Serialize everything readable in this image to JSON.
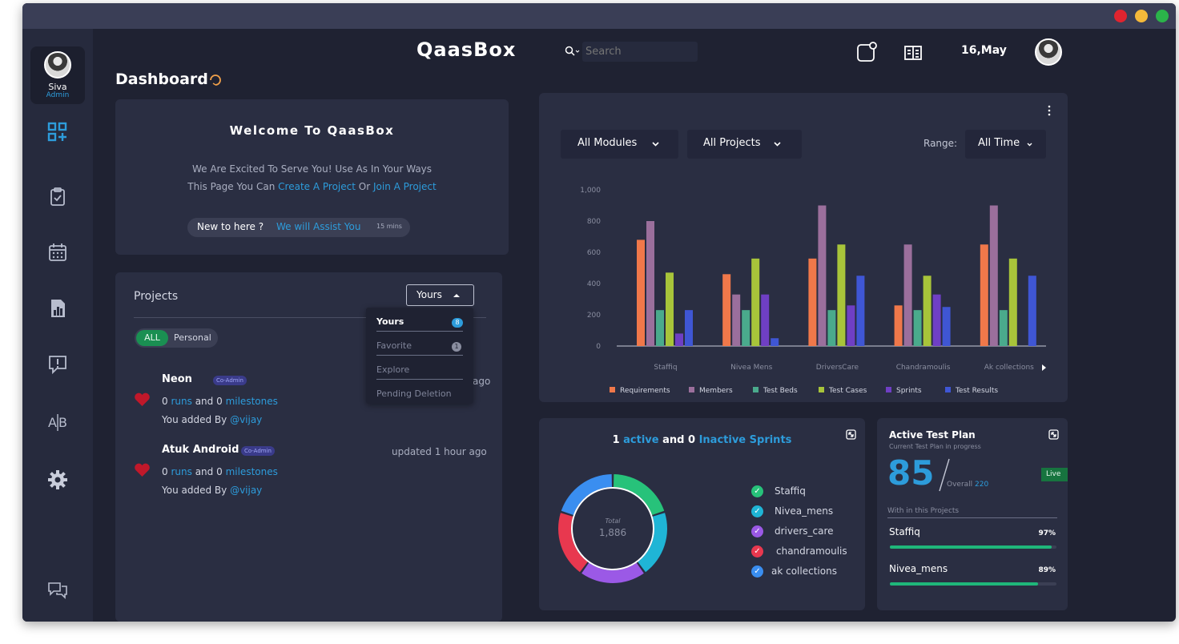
{
  "app": {
    "brand": "QaasBox",
    "date": "16,May"
  },
  "search": {
    "placeholder": "Search"
  },
  "user": {
    "name": "Siva",
    "role": "Admin"
  },
  "page": {
    "title": "Dashboard"
  },
  "welcome": {
    "title": "Welcome To QaasBox",
    "line1": "We Are Excited To Serve You! Use As In Your Ways",
    "line2_prefix": "This Page You  Can",
    "create_link": "Create A Project",
    "or": "Or",
    "join_link": "Join A Project",
    "assist_prefix": "New to here ?",
    "assist_link": "We will Assist You",
    "assist_time": "15 mins"
  },
  "projects": {
    "title": "Projects",
    "filter_selected": "Yours",
    "chips": [
      "ALL",
      "Personal"
    ],
    "dropdown": [
      {
        "label": "Yours",
        "count": "8"
      },
      {
        "label": "Favorite",
        "count": "1"
      },
      {
        "label": "Explore",
        "count": ""
      },
      {
        "label": "Pending Deletion",
        "count": ""
      }
    ],
    "items": [
      {
        "name": "Neon",
        "badge": "Co-Admin",
        "updated": "ago",
        "runs_count": "0",
        "runs": "runs",
        "and": "and",
        "milestones_count": "0",
        "milestones": "milestones",
        "added_by": "You added By",
        "user": "@vijay"
      },
      {
        "name": "Atuk Android",
        "badge": "Co-Admin",
        "updated": "updated 1 hour ago",
        "runs_count": "0",
        "runs": "runs",
        "and": "and",
        "milestones_count": "0",
        "milestones": "milestones",
        "added_by": "You added By",
        "user": "@vijay"
      }
    ]
  },
  "filters": {
    "modules": "All Modules",
    "projects": "All Projects",
    "range_label": "Range:",
    "range": "All Time"
  },
  "chart_data": {
    "type": "bar",
    "categories": [
      "Staffiq",
      "Nivea Mens",
      "DriversCare",
      "Chandramoulis",
      "Ak collections"
    ],
    "series": [
      {
        "name": "Requirements",
        "color": "#f0784a",
        "values": [
          680,
          460,
          560,
          260,
          650
        ]
      },
      {
        "name": "Members",
        "color": "#9b6f9c",
        "values": [
          800,
          330,
          900,
          650,
          900
        ]
      },
      {
        "name": "Test Beds",
        "color": "#4aaa8c",
        "values": [
          230,
          230,
          230,
          230,
          230
        ]
      },
      {
        "name": "Test Cases",
        "color": "#a8c43a",
        "values": [
          470,
          560,
          650,
          450,
          560
        ]
      },
      {
        "name": "Sprints",
        "color": "#6f3fc4",
        "values": [
          80,
          330,
          260,
          330,
          0
        ]
      },
      {
        "name": "Test Results",
        "color": "#3f56d4",
        "values": [
          230,
          50,
          450,
          250,
          450
        ]
      }
    ],
    "yticks": [
      "0",
      "200",
      "400",
      "600",
      "800",
      "1,000"
    ],
    "ylim": [
      0,
      1000
    ]
  },
  "sprints": {
    "title_active_count": "1",
    "title_active": "active",
    "title_and": "and",
    "title_inactive_count": "0",
    "title_inactive": "Inactive Sprints",
    "total_label": "Total",
    "total_value": "1,886",
    "legend": [
      {
        "label": "Staffiq",
        "color": "#27c27a",
        "share": 0.2
      },
      {
        "label": "Nivea_mens",
        "color": "#1fb5d6",
        "share": 0.2
      },
      {
        "label": "drivers_care",
        "color": "#9b59e6",
        "share": 0.2
      },
      {
        "label": "chandramoulis",
        "color": "#e8384f",
        "share": 0.2
      },
      {
        "label": "ak collections",
        "color": "#3a8ef0",
        "share": 0.2
      }
    ]
  },
  "test_plan": {
    "title": "Active Test Plan",
    "subtitle": "Current Test Plan in progress",
    "value": "85",
    "overall_label": "Overall",
    "overall_value": "220",
    "status": "Live",
    "section": "With in this Projects",
    "items": [
      {
        "name": "Staffiq",
        "percent": "97%",
        "fill": 0.97
      },
      {
        "name": "Nivea_mens",
        "percent": "89%",
        "fill": 0.89
      }
    ]
  }
}
